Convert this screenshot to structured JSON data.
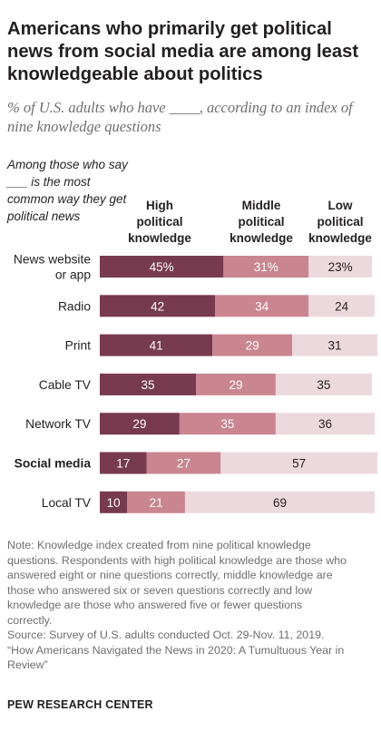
{
  "title": "Americans who primarily get political news from social media are among least knowledgeable about politics",
  "subtitle": "% of U.S. adults who have ____, according to an index of nine knowledge questions",
  "stub_header": "Among those who say ___ is the most common way they get political news",
  "colors": {
    "high": "#773a4e",
    "middle": "#c98590",
    "low": "#ecd9dd",
    "text_dark": "#231f20",
    "text_light": "#ffffff",
    "muted": "#6d6e71"
  },
  "chart_data": {
    "type": "bar",
    "orientation": "horizontal",
    "stacked": true,
    "categories": [
      "News website or app",
      "Radio",
      "Print",
      "Cable TV",
      "Network TV",
      "Social media",
      "Local TV"
    ],
    "category_lines": [
      [
        "News website",
        "or app"
      ],
      [
        "Radio"
      ],
      [
        "Print"
      ],
      [
        "Cable TV"
      ],
      [
        "Network TV"
      ],
      [
        "Social media"
      ],
      [
        "Local TV"
      ]
    ],
    "highlight_category": "Social media",
    "series": [
      {
        "name": "High political knowledge",
        "values": [
          45,
          42,
          41,
          35,
          29,
          17,
          10
        ],
        "labels": [
          "45%",
          "42",
          "41",
          "35",
          "29",
          "17",
          "10"
        ]
      },
      {
        "name": "Middle political knowledge",
        "values": [
          31,
          34,
          29,
          29,
          35,
          27,
          21
        ],
        "labels": [
          "31%",
          "34",
          "29",
          "29",
          "35",
          "27",
          "21"
        ]
      },
      {
        "name": "Low political knowledge",
        "values": [
          23,
          24,
          31,
          35,
          36,
          57,
          69
        ],
        "labels": [
          "23%",
          "24",
          "31",
          "35",
          "36",
          "57",
          "69"
        ]
      }
    ],
    "series_header_lines": [
      [
        "High",
        "political",
        "knowledge"
      ],
      [
        "Middle",
        "political",
        "knowledge"
      ],
      [
        "Low",
        "political",
        "knowledge"
      ]
    ],
    "xlim": [
      0,
      100
    ]
  },
  "note_lines": [
    "Note: Knowledge index created from nine political knowledge",
    "questions. Respondents with high political knowledge are those who",
    "answered eight or nine questions correctly, middle knowledge are",
    "those who answered six or seven questions correctly and low",
    "knowledge are those who answered five or fewer questions",
    "correctly.",
    "Source: Survey of U.S. adults conducted Oct. 29-Nov. 11, 2019.",
    "“How Americans Navigated the News in 2020: A Tumultuous Year in",
    "Review”"
  ],
  "footer": "PEW RESEARCH CENTER"
}
